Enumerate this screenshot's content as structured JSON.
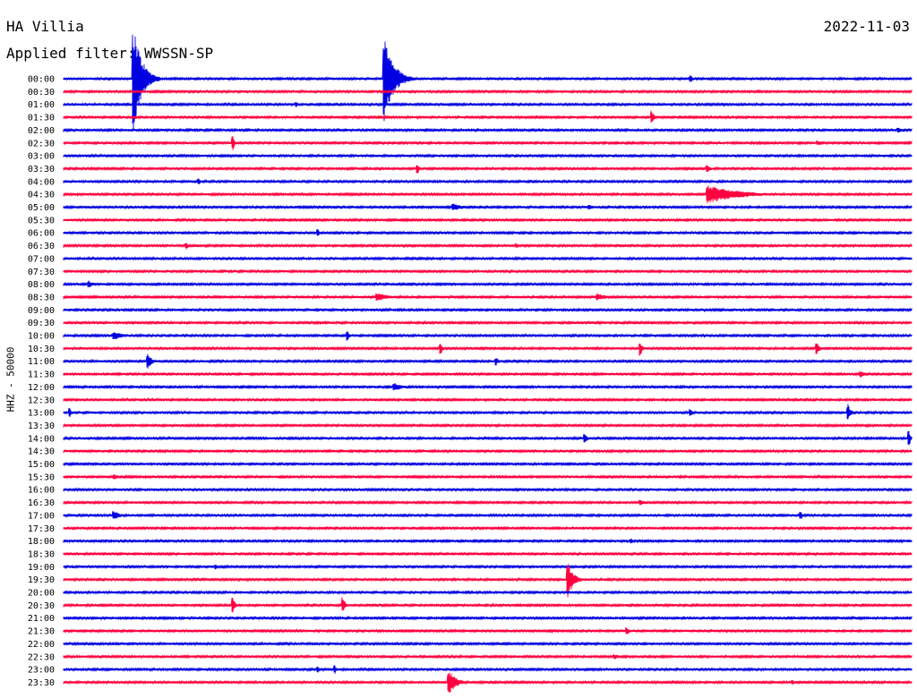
{
  "header": {
    "station": "HA Villia",
    "filter": "Applied filter: WWSSN-SP",
    "date": "2022-11-03"
  },
  "axis": {
    "ylabel": "HHZ - 50000"
  },
  "colors": {
    "odd": "#0000e0",
    "even": "#ff0040",
    "background": "#ffffff"
  },
  "chart_data": {
    "type": "line",
    "title": "",
    "ylabel": "HHZ - 50000",
    "grid": false,
    "trace_colors": [
      "#0000e0",
      "#ff0040"
    ],
    "rows": [
      "00:00",
      "00:30",
      "01:00",
      "01:30",
      "02:00",
      "02:30",
      "03:00",
      "03:30",
      "04:00",
      "04:30",
      "05:00",
      "05:30",
      "06:00",
      "06:30",
      "07:00",
      "07:30",
      "08:00",
      "08:30",
      "09:00",
      "09:30",
      "10:00",
      "10:30",
      "11:00",
      "11:30",
      "12:00",
      "12:30",
      "13:00",
      "13:30",
      "14:00",
      "14:30",
      "15:00",
      "15:30",
      "16:00",
      "16:30",
      "17:00",
      "17:30",
      "18:00",
      "18:30",
      "19:00",
      "19:30",
      "20:00",
      "20:30",
      "21:00",
      "21:30",
      "22:00",
      "22:30",
      "23:00",
      "23:30"
    ],
    "events_fraction_of_row": [
      {
        "row": "00:00",
        "at": 0.083,
        "amp": 60,
        "dur": 0.03
      },
      {
        "row": "00:00",
        "at": 0.378,
        "amp": 48,
        "dur": 0.035
      },
      {
        "row": "00:00",
        "at": 0.74,
        "amp": 4,
        "dur": 0.006
      },
      {
        "row": "01:00",
        "at": 0.275,
        "amp": 3,
        "dur": 0.006
      },
      {
        "row": "01:30",
        "at": 0.694,
        "amp": 8,
        "dur": 0.008
      },
      {
        "row": "02:00",
        "at": 0.985,
        "amp": 3,
        "dur": 0.02
      },
      {
        "row": "02:30",
        "at": 0.2,
        "amp": 8,
        "dur": 0.006
      },
      {
        "row": "02:30",
        "at": 0.89,
        "amp": 3,
        "dur": 0.01
      },
      {
        "row": "03:30",
        "at": 0.418,
        "amp": 6,
        "dur": 0.006
      },
      {
        "row": "03:30",
        "at": 0.76,
        "amp": 4,
        "dur": 0.012
      },
      {
        "row": "04:00",
        "at": 0.16,
        "amp": 4,
        "dur": 0.005
      },
      {
        "row": "04:30",
        "at": 0.76,
        "amp": 11,
        "dur": 0.11
      },
      {
        "row": "05:00",
        "at": 0.46,
        "amp": 4,
        "dur": 0.04
      },
      {
        "row": "05:00",
        "at": 0.62,
        "amp": 3,
        "dur": 0.02
      },
      {
        "row": "06:00",
        "at": 0.3,
        "amp": 5,
        "dur": 0.006
      },
      {
        "row": "06:30",
        "at": 0.145,
        "amp": 4,
        "dur": 0.006
      },
      {
        "row": "06:30",
        "at": 0.535,
        "amp": 3,
        "dur": 0.004
      },
      {
        "row": "08:00",
        "at": 0.03,
        "amp": 4,
        "dur": 0.02
      },
      {
        "row": "08:30",
        "at": 0.37,
        "amp": 5,
        "dur": 0.04
      },
      {
        "row": "08:30",
        "at": 0.63,
        "amp": 4,
        "dur": 0.04
      },
      {
        "row": "10:00",
        "at": 0.06,
        "amp": 5,
        "dur": 0.03
      },
      {
        "row": "10:00",
        "at": 0.335,
        "amp": 6,
        "dur": 0.006
      },
      {
        "row": "10:30",
        "at": 0.445,
        "amp": 7,
        "dur": 0.006
      },
      {
        "row": "10:30",
        "at": 0.68,
        "amp": 9,
        "dur": 0.008
      },
      {
        "row": "10:30",
        "at": 0.888,
        "amp": 8,
        "dur": 0.01
      },
      {
        "row": "11:00",
        "at": 0.1,
        "amp": 9,
        "dur": 0.012
      },
      {
        "row": "11:00",
        "at": 0.51,
        "amp": 5,
        "dur": 0.01
      },
      {
        "row": "11:30",
        "at": 0.94,
        "amp": 4,
        "dur": 0.02
      },
      {
        "row": "12:00",
        "at": 0.39,
        "amp": 5,
        "dur": 0.03
      },
      {
        "row": "13:00",
        "at": 0.008,
        "amp": 6,
        "dur": 0.004
      },
      {
        "row": "13:00",
        "at": 0.74,
        "amp": 5,
        "dur": 0.006
      },
      {
        "row": "13:00",
        "at": 0.925,
        "amp": 10,
        "dur": 0.012
      },
      {
        "row": "14:00",
        "at": 0.615,
        "amp": 7,
        "dur": 0.008
      },
      {
        "row": "14:00",
        "at": 0.997,
        "amp": 10,
        "dur": 0.006
      },
      {
        "row": "15:30",
        "at": 0.06,
        "amp": 3,
        "dur": 0.02
      },
      {
        "row": "16:30",
        "at": 0.68,
        "amp": 3,
        "dur": 0.03
      },
      {
        "row": "17:00",
        "at": 0.06,
        "amp": 5,
        "dur": 0.025
      },
      {
        "row": "17:00",
        "at": 0.87,
        "amp": 4,
        "dur": 0.005
      },
      {
        "row": "18:00",
        "at": 0.67,
        "amp": 3,
        "dur": 0.006
      },
      {
        "row": "19:00",
        "at": 0.18,
        "amp": 3,
        "dur": 0.005
      },
      {
        "row": "19:30",
        "at": 0.595,
        "amp": 20,
        "dur": 0.02
      },
      {
        "row": "20:30",
        "at": 0.2,
        "amp": 9,
        "dur": 0.008
      },
      {
        "row": "20:30",
        "at": 0.33,
        "amp": 9,
        "dur": 0.008
      },
      {
        "row": "21:30",
        "at": 0.665,
        "amp": 4,
        "dur": 0.01
      },
      {
        "row": "22:30",
        "at": 0.65,
        "amp": 3,
        "dur": 0.02
      },
      {
        "row": "23:00",
        "at": 0.3,
        "amp": 4,
        "dur": 0.006
      },
      {
        "row": "23:00",
        "at": 0.32,
        "amp": 5,
        "dur": 0.006
      },
      {
        "row": "23:30",
        "at": 0.455,
        "amp": 14,
        "dur": 0.025
      },
      {
        "row": "23:30",
        "at": 0.86,
        "amp": 3,
        "dur": 0.006
      }
    ]
  }
}
